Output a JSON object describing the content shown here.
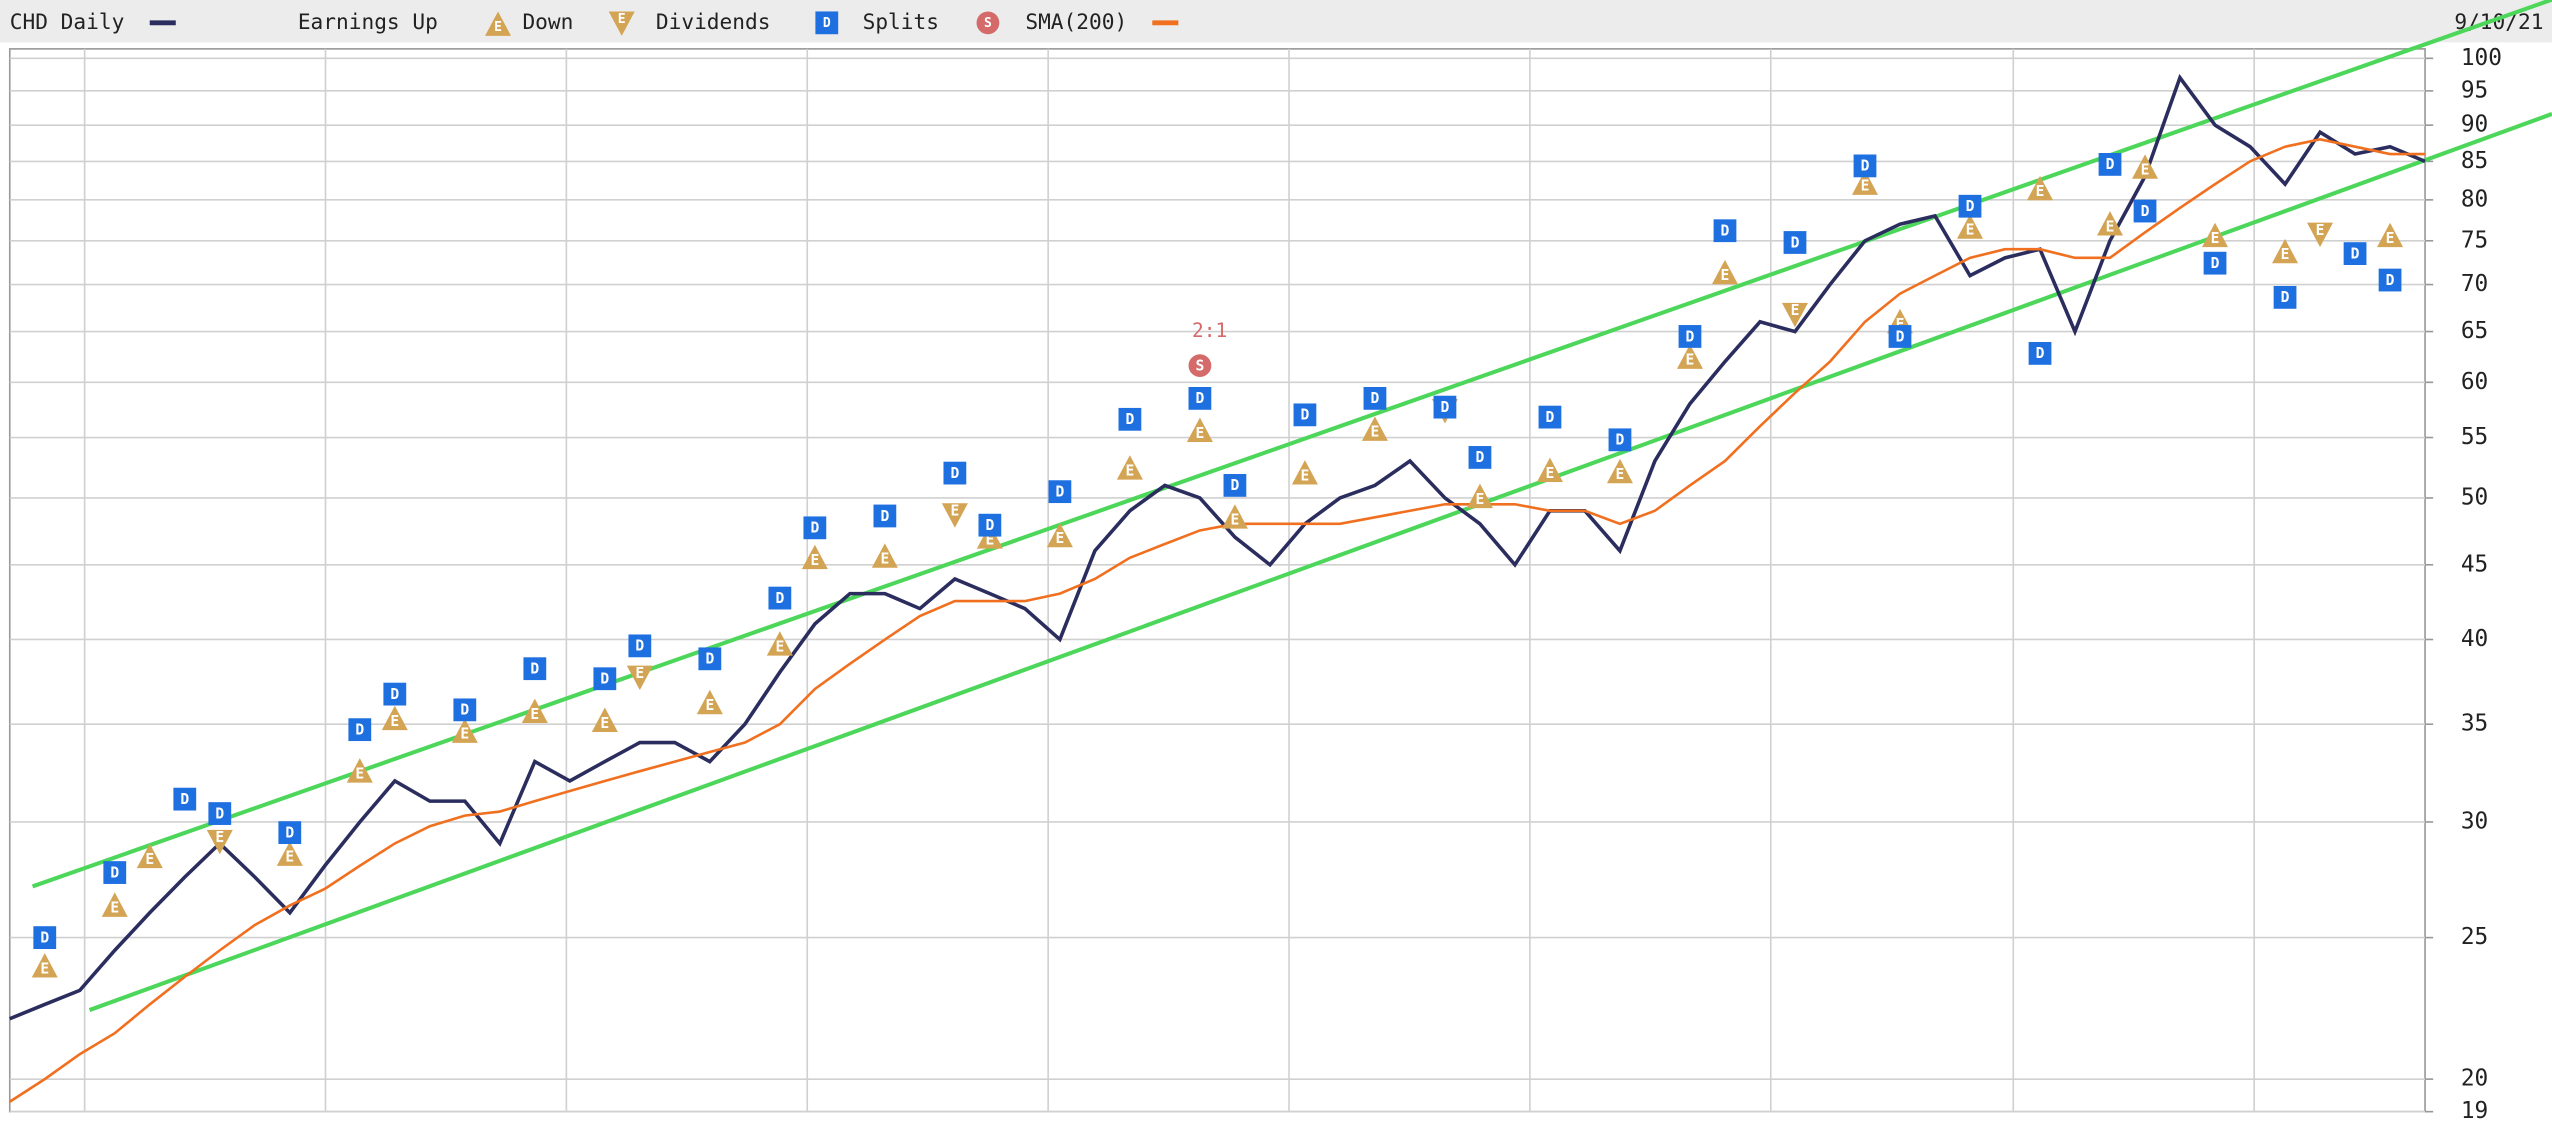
{
  "chart_data": {
    "type": "line",
    "date": "9/10/21",
    "log_scale": true,
    "grid": true,
    "ylim": [
      19,
      101.5
    ],
    "yticks": [
      19,
      20,
      25,
      30,
      35,
      40,
      45,
      50,
      55,
      60,
      65,
      70,
      75,
      80,
      85,
      90,
      95,
      100
    ],
    "categories": [
      null,
      null,
      null,
      null,
      null,
      null,
      null,
      null,
      null,
      null,
      null,
      null,
      null,
      null,
      null,
      null,
      null,
      null,
      null,
      null,
      null,
      null,
      null,
      null,
      null,
      null,
      null,
      null,
      null,
      null,
      null,
      null,
      null,
      null,
      null,
      null,
      null,
      null,
      null,
      null,
      null,
      null,
      null,
      null,
      null,
      null,
      null,
      null,
      null,
      null,
      null,
      null,
      null,
      null,
      null,
      null,
      null,
      null,
      null,
      null,
      null,
      null,
      null,
      null,
      null,
      null,
      null,
      null,
      null,
      null
    ],
    "series": [
      {
        "name": "CHD Daily",
        "color": "#2b2d5e",
        "mark": "line",
        "values": [
          22,
          22.5,
          23,
          24.5,
          26,
          27.5,
          29,
          27.5,
          26,
          28,
          30,
          32,
          31,
          31,
          29,
          33,
          32,
          33,
          34,
          34,
          33,
          35,
          38,
          41,
          43,
          43,
          42,
          44,
          43,
          42,
          40,
          46,
          49,
          51,
          50,
          47,
          45,
          48,
          50,
          51,
          53,
          50,
          48,
          45,
          49,
          49,
          46,
          53,
          58,
          62,
          66,
          65,
          70,
          75,
          77,
          78,
          71,
          73,
          74,
          65,
          75,
          83,
          97,
          90,
          87,
          82,
          89,
          86,
          87,
          85
        ]
      },
      {
        "name": "Earnings Up",
        "color": "#d4a455",
        "mark": "triangle-up",
        "symbol": "E",
        "values": [
          null,
          23.9,
          null,
          26.3,
          28.4,
          null,
          null,
          null,
          28.5,
          null,
          32.5,
          35.3,
          null,
          34.6,
          null,
          35.7,
          null,
          35.2,
          null,
          null,
          36.2,
          null,
          39.7,
          45.5,
          null,
          45.6,
          null,
          null,
          47.0,
          null,
          47.1,
          null,
          52.4,
          null,
          55.6,
          48.5,
          null,
          52.0,
          null,
          55.7,
          null,
          null,
          50.1,
          null,
          52.2,
          null,
          52.1,
          null,
          62.4,
          71.3,
          null,
          null,
          null,
          82.1,
          66.0,
          null,
          76.6,
          null,
          81.4,
          null,
          77.0,
          84.2,
          null,
          75.6,
          null,
          73.7,
          null,
          null,
          75.6,
          null
        ]
      },
      {
        "name": "Down",
        "color": "#d4a455",
        "mark": "triangle-down",
        "symbol": "E",
        "values": [
          null,
          null,
          null,
          null,
          null,
          null,
          29.1,
          null,
          null,
          null,
          null,
          null,
          null,
          null,
          null,
          null,
          null,
          null,
          37.7,
          null,
          null,
          null,
          null,
          null,
          null,
          null,
          null,
          48.7,
          null,
          null,
          null,
          null,
          null,
          null,
          null,
          null,
          null,
          null,
          null,
          null,
          null,
          57.4,
          null,
          null,
          null,
          null,
          null,
          null,
          null,
          null,
          null,
          66.8,
          null,
          null,
          null,
          null,
          null,
          null,
          null,
          null,
          null,
          null,
          null,
          null,
          null,
          null,
          75.8,
          null,
          null,
          null
        ]
      },
      {
        "name": "Dividends",
        "color": "#1e6fe0",
        "mark": "square",
        "symbol": "D",
        "values": [
          null,
          25,
          null,
          27.7,
          null,
          31.1,
          30.4,
          null,
          29.5,
          null,
          34.7,
          36.7,
          null,
          35.8,
          null,
          38.2,
          null,
          37.6,
          39.6,
          null,
          38.8,
          null,
          42.7,
          47.7,
          null,
          48.6,
          null,
          52,
          47.9,
          null,
          50.5,
          null,
          56.6,
          null,
          58.5,
          51,
          null,
          57,
          null,
          58.5,
          null,
          57.7,
          53.3,
          null,
          56.8,
          null,
          54.8,
          null,
          64.5,
          76.2,
          null,
          74.8,
          null,
          84.4,
          64.5,
          null,
          79.2,
          null,
          62.8,
          null,
          84.6,
          78.6,
          null,
          72.4,
          null,
          68.6,
          null,
          73.5,
          70.5,
          null
        ]
      },
      {
        "name": "Splits",
        "color": "#d46a6a",
        "mark": "circle",
        "symbol": "S",
        "label": "2:1",
        "values": [
          null,
          null,
          null,
          null,
          null,
          null,
          null,
          null,
          null,
          null,
          null,
          null,
          null,
          null,
          null,
          null,
          null,
          null,
          null,
          null,
          null,
          null,
          null,
          null,
          null,
          null,
          null,
          null,
          null,
          null,
          null,
          null,
          null,
          null,
          61.6,
          null,
          null,
          null,
          null,
          null,
          null,
          null,
          null,
          null,
          null,
          null,
          null,
          null,
          null,
          null,
          null,
          null,
          null,
          null,
          null,
          null,
          null,
          null,
          null,
          null,
          null,
          null,
          null,
          null,
          null,
          null,
          null,
          null,
          null,
          null
        ]
      },
      {
        "name": "SMA(200)",
        "color": "#f07020",
        "mark": "line",
        "values": [
          19.3,
          20,
          20.8,
          21.5,
          22.5,
          23.5,
          24.5,
          25.5,
          26.3,
          27,
          28,
          29,
          29.8,
          30.3,
          30.5,
          31,
          31.5,
          32,
          32.5,
          33,
          33.5,
          34,
          35,
          37,
          38.5,
          40,
          41.5,
          42.5,
          42.5,
          42.5,
          43,
          44,
          45.5,
          46.5,
          47.5,
          48,
          48,
          48,
          48,
          48.5,
          49,
          49.5,
          49.5,
          49.5,
          49,
          49,
          48,
          49,
          51,
          53,
          56,
          59,
          62,
          66,
          69,
          71,
          73,
          74,
          74,
          73,
          73,
          76,
          79,
          82,
          85,
          87,
          88,
          87,
          86,
          86
        ]
      }
    ],
    "trendlines": [
      {
        "color": "#4cd65a",
        "values": [
          27.1,
          109.7
        ]
      },
      {
        "color": "#4cd65a",
        "values": [
          22.3,
          91.6
        ]
      }
    ]
  }
}
